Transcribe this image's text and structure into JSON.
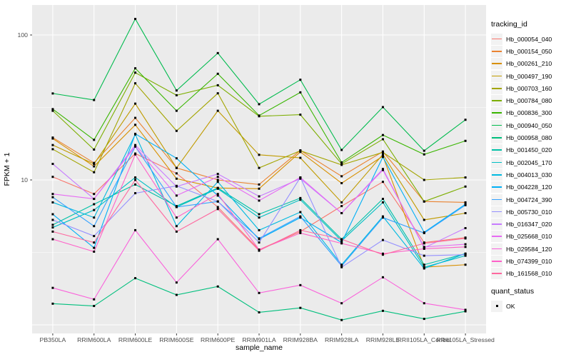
{
  "figure": {
    "background": "#FFFFFF",
    "panel_background": "#EBEBEB",
    "grid_color": "#FFFFFF",
    "tick_color": "#333333",
    "tick_label_color": "#4D4D4D",
    "point_color": "#000000"
  },
  "axes": {
    "x_title": "sample_name",
    "y_title": "FPKM + 1",
    "y_tick_labels": [
      "100",
      "10"
    ],
    "y_tick_values": [
      100,
      10
    ]
  },
  "legend": {
    "color_title": "tracking_id",
    "shape_title": "quant_status",
    "shape_items": [
      {
        "label": "OK",
        "marker": "black-square"
      }
    ]
  },
  "chart_data": {
    "type": "line",
    "x_field": "sample_name",
    "y_field": "FPKM + 1",
    "y_scale": "log10",
    "y_axis_range": [
      0.87,
      160
    ],
    "grid": "on",
    "legend_position": "right",
    "marker": "small-black-square",
    "categories": [
      "PB350LA",
      "RRIM600LA",
      "RRIM600LE",
      "RRIM600SE",
      "RRIM600PE",
      "RRIM901LA",
      "RRIM928BA",
      "RRIM928LA",
      "RRIM928LE",
      "RRII105LA_Control",
      "RRII105LA_Stressed"
    ],
    "series": [
      {
        "name": "Hb_000054_040",
        "color": "#F8766D",
        "values": [
          10.5,
          8.0,
          15.2,
          11.1,
          6.5,
          3.3,
          4.4,
          6.6,
          9.7,
          3.7,
          4.0
        ]
      },
      {
        "name": "Hb_000154_050",
        "color": "#EA8331",
        "values": [
          19.6,
          13.1,
          26.8,
          12.1,
          10.0,
          9.3,
          16.0,
          10.6,
          15.7,
          7.1,
          7.0
        ]
      },
      {
        "name": "Hb_000261_210",
        "color": "#D89000",
        "values": [
          19.3,
          12.4,
          24.0,
          10.2,
          8.8,
          8.7,
          15.6,
          9.5,
          14.6,
          2.5,
          2.6
        ]
      },
      {
        "name": "Hb_000497_190",
        "color": "#C09B00",
        "values": [
          17.4,
          12.9,
          33.6,
          12.1,
          30.0,
          14.9,
          14.2,
          7.0,
          15.0,
          5.3,
          5.9
        ]
      },
      {
        "name": "Hb_000703_160",
        "color": "#A3A500",
        "values": [
          16.3,
          11.3,
          46.4,
          21.8,
          39.6,
          12.1,
          15.9,
          12.7,
          15.5,
          10.0,
          10.4
        ]
      },
      {
        "name": "Hb_000784_080",
        "color": "#7CAE00",
        "values": [
          30.0,
          16.2,
          55.0,
          38.4,
          45.0,
          27.5,
          28.2,
          12.9,
          19.1,
          7.1,
          9.0
        ]
      },
      {
        "name": "Hb_000836_300",
        "color": "#39B600",
        "values": [
          30.8,
          18.9,
          58.9,
          30.0,
          54.0,
          27.8,
          40.2,
          13.2,
          20.4,
          15.0,
          18.6
        ]
      },
      {
        "name": "Hb_000940_050",
        "color": "#00BB4E",
        "values": [
          39.5,
          35.6,
          129.0,
          41.4,
          75.0,
          33.3,
          49.1,
          16.1,
          31.8,
          15.9,
          26.0
        ]
      },
      {
        "name": "Hb_000958_080",
        "color": "#00BF7D",
        "values": [
          1.4,
          1.35,
          2.1,
          1.61,
          1.84,
          1.22,
          1.31,
          1.08,
          1.25,
          1.1,
          1.24
        ]
      },
      {
        "name": "Hb_001450_020",
        "color": "#00C1A7",
        "values": [
          4.9,
          6.8,
          9.3,
          6.6,
          8.8,
          5.8,
          7.5,
          3.9,
          7.4,
          2.6,
          3.1
        ]
      },
      {
        "name": "Hb_002045_170",
        "color": "#00BFC4",
        "values": [
          4.7,
          6.2,
          10.4,
          6.5,
          8.7,
          5.5,
          7.3,
          3.8,
          7.0,
          2.5,
          3.0
        ]
      },
      {
        "name": "Hb_004013_030",
        "color": "#00BAE0",
        "values": [
          7.0,
          5.5,
          20.6,
          4.8,
          9.7,
          4.5,
          6.0,
          2.6,
          5.6,
          2.45,
          3.1
        ]
      },
      {
        "name": "Hb_004228_120",
        "color": "#00B0F6",
        "values": [
          5.8,
          3.4,
          20.8,
          14.1,
          7.8,
          3.9,
          5.5,
          3.7,
          14.4,
          4.35,
          6.8
        ]
      },
      {
        "name": "Hb_004724_390",
        "color": "#35A2FF",
        "values": [
          7.6,
          4.8,
          17.0,
          6.5,
          7.1,
          3.95,
          5.6,
          2.55,
          5.5,
          4.3,
          6.7
        ]
      },
      {
        "name": "Hb_005730_010",
        "color": "#9590FF",
        "values": [
          5.3,
          4.1,
          8.1,
          9.1,
          7.1,
          3.7,
          10.4,
          2.5,
          3.85,
          3.0,
          3.05
        ]
      },
      {
        "name": "Hb_016347_020",
        "color": "#C77CFF",
        "values": [
          12.9,
          7.4,
          17.4,
          9.0,
          11.0,
          7.7,
          10.2,
          5.9,
          11.9,
          3.4,
          4.65
        ]
      },
      {
        "name": "Hb_025668_010",
        "color": "#E76BF3",
        "values": [
          8.0,
          7.4,
          17.0,
          7.8,
          10.5,
          7.2,
          10.4,
          5.9,
          11.7,
          3.45,
          3.6
        ]
      },
      {
        "name": "Hb_029584_120",
        "color": "#FA62DB",
        "values": [
          1.8,
          1.5,
          4.5,
          1.96,
          3.9,
          1.66,
          1.88,
          1.41,
          2.13,
          1.41,
          1.27
        ]
      },
      {
        "name": "Hb_074399_010",
        "color": "#FF61C9",
        "values": [
          3.9,
          3.2,
          15.0,
          5.5,
          8.0,
          3.3,
          4.3,
          3.65,
          3.1,
          3.35,
          3.45
        ]
      },
      {
        "name": "Hb_161568_010",
        "color": "#FF689F",
        "values": [
          4.4,
          3.7,
          10.0,
          4.4,
          6.3,
          3.25,
          4.5,
          3.9,
          3.05,
          3.65,
          3.95
        ]
      }
    ]
  }
}
